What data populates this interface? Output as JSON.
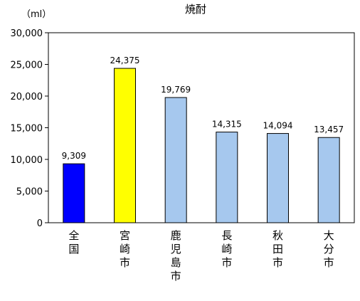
{
  "chart_data": {
    "type": "bar",
    "title": "焼酎",
    "unit_label": "（ml）",
    "categories": [
      "全国",
      "宮崎市",
      "鹿児島市",
      "長崎市",
      "秋田市",
      "大分市"
    ],
    "values": [
      9309,
      24375,
      19769,
      14315,
      14094,
      13457
    ],
    "value_labels": [
      "9,309",
      "24,375",
      "19,769",
      "14,315",
      "14,094",
      "13,457"
    ],
    "bar_colors": [
      "#0000ff",
      "#ffff00",
      "#a6c8ee",
      "#a6c8ee",
      "#a6c8ee",
      "#a6c8ee"
    ],
    "ylim": [
      0,
      30000
    ],
    "yticks": [
      0,
      5000,
      10000,
      15000,
      20000,
      25000,
      30000
    ],
    "ytick_labels": [
      "0",
      "5,000",
      "10,000",
      "15,000",
      "20,000",
      "25,000",
      "30,000"
    ],
    "grid": false,
    "legend": "none"
  }
}
